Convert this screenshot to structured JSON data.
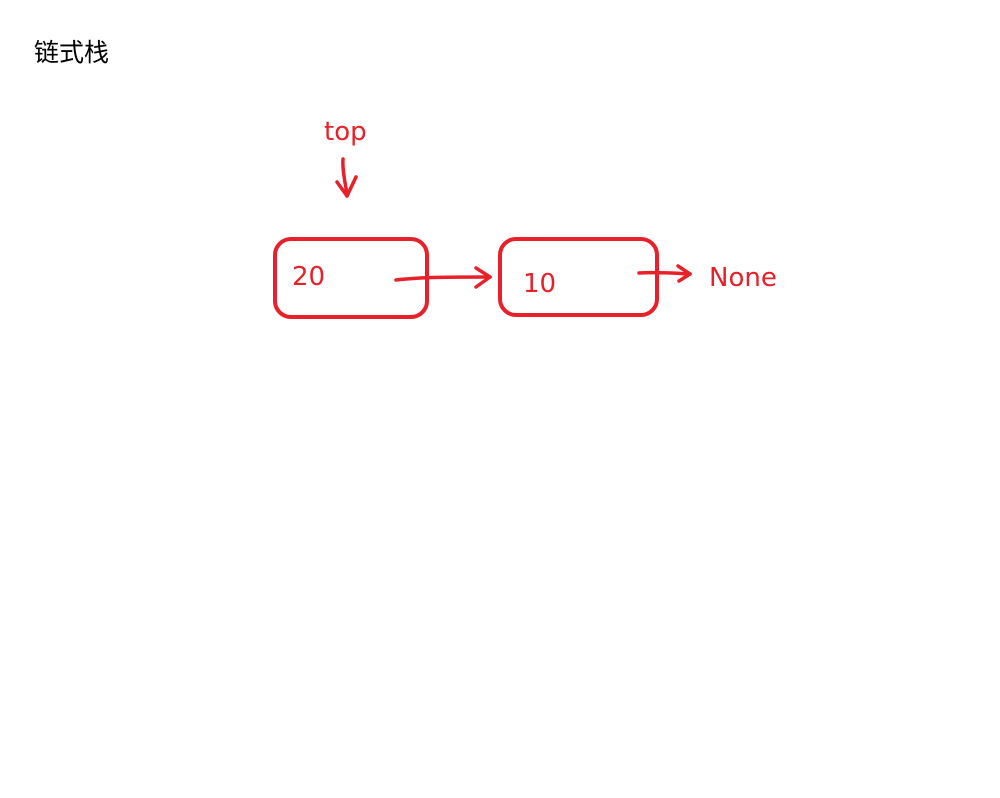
{
  "title": "链式栈",
  "pointer_label": "top",
  "nodes": [
    {
      "value": "20"
    },
    {
      "value": "10"
    }
  ],
  "terminal_label": "None",
  "colors": {
    "ink": "#e8202a",
    "title": "#000000",
    "background": "#ffffff"
  }
}
